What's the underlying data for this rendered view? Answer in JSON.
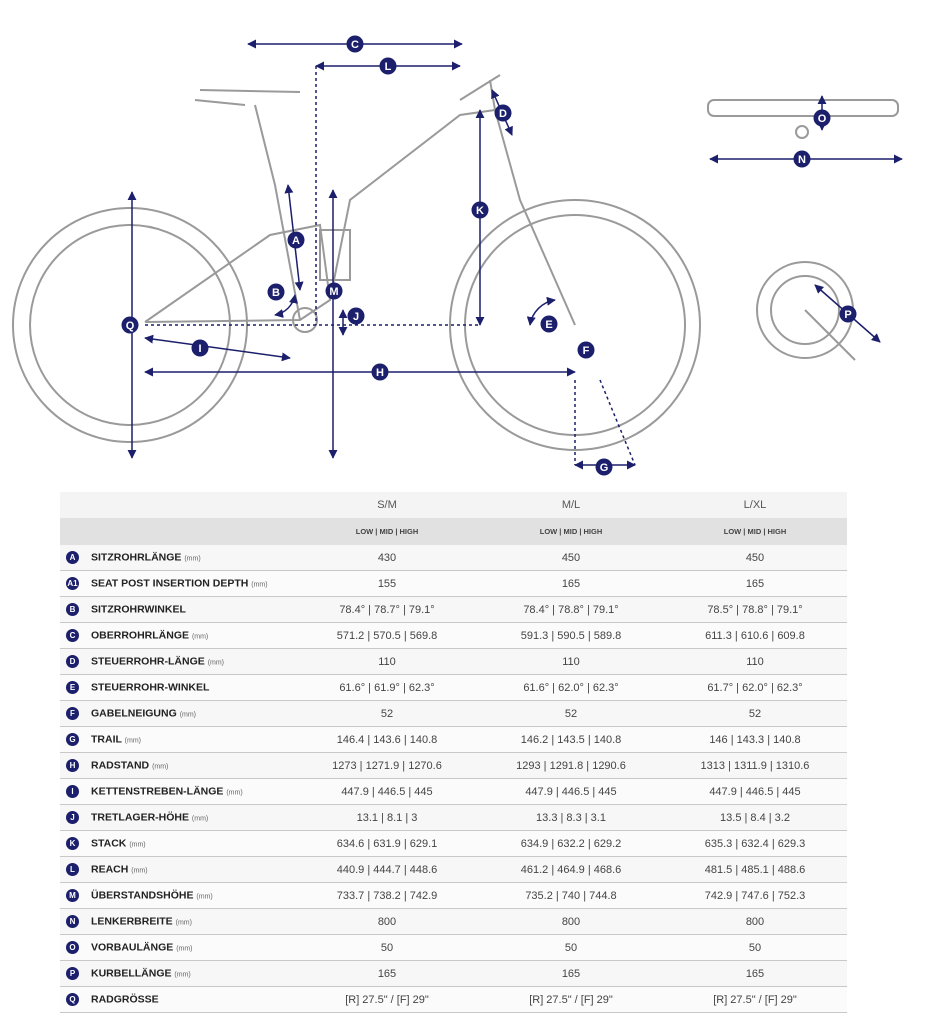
{
  "diagram": {
    "labels": [
      "A",
      "B",
      "C",
      "D",
      "E",
      "F",
      "G",
      "H",
      "I",
      "J",
      "K",
      "L",
      "M",
      "N",
      "O",
      "P",
      "Q"
    ],
    "accent": "#1c1f6b",
    "frame_color": "#9a9a9a"
  },
  "table": {
    "sizes": [
      "S/M",
      "M/L",
      "L/XL"
    ],
    "positions": "LOW | MID | HIGH",
    "rows": [
      {
        "key": "A",
        "label": "SITZROHRLÄNGE",
        "unit": "(mm)",
        "values": [
          "430",
          "450",
          "450"
        ]
      },
      {
        "key": "A1",
        "label": "SEAT POST INSERTION DEPTH",
        "unit": "(mm)",
        "values": [
          "155",
          "165",
          "165"
        ]
      },
      {
        "key": "B",
        "label": "SITZROHRWINKEL",
        "unit": "",
        "values": [
          "78.4° | 78.7° | 79.1°",
          "78.4° | 78.8° | 79.1°",
          "78.5° | 78.8° | 79.1°"
        ]
      },
      {
        "key": "C",
        "label": "OBERROHRLÄNGE",
        "unit": "(mm)",
        "values": [
          "571.2 | 570.5 | 569.8",
          "591.3 | 590.5 | 589.8",
          "611.3 | 610.6 | 609.8"
        ]
      },
      {
        "key": "D",
        "label": "STEUERROHR-LÄNGE",
        "unit": "(mm)",
        "values": [
          "110",
          "110",
          "110"
        ]
      },
      {
        "key": "E",
        "label": "STEUERROHR-WINKEL",
        "unit": "",
        "values": [
          "61.6° | 61.9° | 62.3°",
          "61.6° | 62.0° | 62.3°",
          "61.7° | 62.0° | 62.3°"
        ]
      },
      {
        "key": "F",
        "label": "GABELNEIGUNG",
        "unit": "(mm)",
        "values": [
          "52",
          "52",
          "52"
        ]
      },
      {
        "key": "G",
        "label": "TRAIL",
        "unit": "(mm)",
        "values": [
          "146.4 | 143.6 | 140.8",
          "146.2 | 143.5 | 140.8",
          "146 | 143.3 | 140.8"
        ]
      },
      {
        "key": "H",
        "label": "RADSTAND",
        "unit": "(mm)",
        "values": [
          "1273 | 1271.9 | 1270.6",
          "1293 | 1291.8 | 1290.6",
          "1313 | 1311.9 | 1310.6"
        ]
      },
      {
        "key": "I",
        "label": "KETTENSTREBEN-LÄNGE",
        "unit": "(mm)",
        "values": [
          "447.9 | 446.5 | 445",
          "447.9 | 446.5 | 445",
          "447.9 | 446.5 | 445"
        ]
      },
      {
        "key": "J",
        "label": "TRETLAGER-HÖHE",
        "unit": "(mm)",
        "values": [
          "13.1 | 8.1 | 3",
          "13.3 | 8.3 | 3.1",
          "13.5 | 8.4 | 3.2"
        ]
      },
      {
        "key": "K",
        "label": "STACK",
        "unit": "(mm)",
        "values": [
          "634.6 | 631.9 | 629.1",
          "634.9 | 632.2 | 629.2",
          "635.3 | 632.4 | 629.3"
        ]
      },
      {
        "key": "L",
        "label": "REACH",
        "unit": "(mm)",
        "values": [
          "440.9 | 444.7 | 448.6",
          "461.2 | 464.9 | 468.6",
          "481.5 | 485.1 | 488.6"
        ]
      },
      {
        "key": "M",
        "label": "ÜBERSTANDSHÖHE",
        "unit": "(mm)",
        "values": [
          "733.7 | 738.2 | 742.9",
          "735.2 | 740 | 744.8",
          "742.9 | 747.6 | 752.3"
        ]
      },
      {
        "key": "N",
        "label": "LENKERBREITE",
        "unit": "(mm)",
        "values": [
          "800",
          "800",
          "800"
        ]
      },
      {
        "key": "O",
        "label": "VORBAULÄNGE",
        "unit": "(mm)",
        "values": [
          "50",
          "50",
          "50"
        ]
      },
      {
        "key": "P",
        "label": "KURBELLÄNGE",
        "unit": "(mm)",
        "values": [
          "165",
          "165",
          "165"
        ]
      },
      {
        "key": "Q",
        "label": "RADGRÖSSE",
        "unit": "",
        "values": [
          "[R] 27.5\" / [F] 29\"",
          "[R] 27.5\" / [F] 29\"",
          "[R] 27.5\" / [F] 29\""
        ]
      }
    ]
  }
}
